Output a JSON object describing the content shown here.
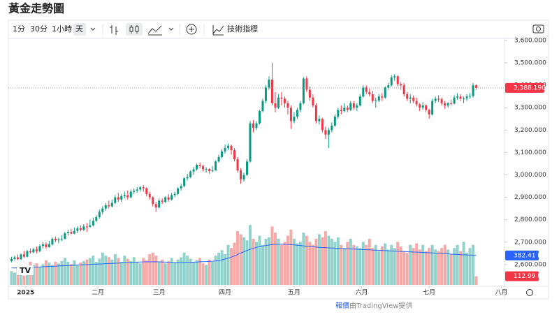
{
  "header": {
    "title": "黃金走勢圖"
  },
  "toolbar": {
    "intervals": [
      "1分",
      "30分",
      "1小時",
      "天"
    ],
    "indicators": "技術指標"
  },
  "footer": {
    "prefix": "報價",
    "text": "由TradingView提供"
  },
  "chart_data": {
    "type": "candlestick",
    "up_color": "#089981",
    "down_color": "#f23645",
    "up_volume_color": "#92d2cc",
    "down_volume_color": "#f7a9a7",
    "volume_ma_color": "#2962ff",
    "xlim": [
      -1,
      157
    ],
    "xticks": [
      {
        "value": 4.5,
        "label": "2025"
      },
      {
        "value": 27.5,
        "label": "二月"
      },
      {
        "value": 47,
        "label": "三月"
      },
      {
        "value": 68,
        "label": "四月"
      },
      {
        "value": 90,
        "label": "五月"
      },
      {
        "value": 111.5,
        "label": "六月"
      },
      {
        "value": 133,
        "label": "七月"
      },
      {
        "value": 156,
        "label": "八月"
      }
    ],
    "ylim": [
      2503,
      3631
    ],
    "yticks": [
      {
        "value": 2600,
        "label": "2,600.000"
      },
      {
        "value": 2700,
        "label": "2,700.000"
      },
      {
        "value": 2800,
        "label": "2,800.000"
      },
      {
        "value": 2900,
        "label": "2,900.000"
      },
      {
        "value": 3000,
        "label": "3,000.000"
      },
      {
        "value": 3100,
        "label": "3,100.000"
      },
      {
        "value": 3200,
        "label": "3,200.000"
      },
      {
        "value": 3300,
        "label": "3,300.000"
      },
      {
        "value": 3400,
        "label": "3,400.000"
      },
      {
        "value": 3500,
        "label": "3,500.000"
      },
      {
        "value": 3600,
        "label": "3,600.000"
      }
    ],
    "grid": false,
    "last_price_label": "3,388.190",
    "volume_last_label": "112.99 K",
    "volume_ma_last_label": "382.41 K",
    "candles": [
      [
        2615,
        2635,
        2610,
        2625
      ],
      [
        2625,
        2640,
        2618,
        2632
      ],
      [
        2632,
        2645,
        2620,
        2624
      ],
      [
        2624,
        2650,
        2620,
        2645
      ],
      [
        2645,
        2660,
        2630,
        2635
      ],
      [
        2635,
        2665,
        2632,
        2660
      ],
      [
        2660,
        2672,
        2648,
        2655
      ],
      [
        2655,
        2675,
        2650,
        2668
      ],
      [
        2668,
        2680,
        2650,
        2660
      ],
      [
        2660,
        2690,
        2655,
        2683
      ],
      [
        2683,
        2700,
        2672,
        2690
      ],
      [
        2690,
        2700,
        2670,
        2678
      ],
      [
        2678,
        2705,
        2675,
        2690
      ],
      [
        2690,
        2722,
        2685,
        2715
      ],
      [
        2715,
        2725,
        2700,
        2708
      ],
      [
        2708,
        2720,
        2695,
        2712
      ],
      [
        2712,
        2730,
        2705,
        2715
      ],
      [
        2715,
        2745,
        2712,
        2740
      ],
      [
        2740,
        2755,
        2730,
        2745
      ],
      [
        2745,
        2760,
        2735,
        2738
      ],
      [
        2738,
        2765,
        2735,
        2750
      ],
      [
        2750,
        2770,
        2740,
        2762
      ],
      [
        2762,
        2775,
        2748,
        2755
      ],
      [
        2755,
        2780,
        2750,
        2770
      ],
      [
        2770,
        2785,
        2745,
        2768
      ],
      [
        2768,
        2800,
        2765,
        2775
      ],
      [
        2775,
        2810,
        2770,
        2795
      ],
      [
        2795,
        2820,
        2790,
        2812
      ],
      [
        2812,
        2845,
        2805,
        2835
      ],
      [
        2835,
        2860,
        2825,
        2850
      ],
      [
        2850,
        2875,
        2840,
        2865
      ],
      [
        2865,
        2885,
        2850,
        2860
      ],
      [
        2860,
        2890,
        2855,
        2875
      ],
      [
        2875,
        2910,
        2870,
        2900
      ],
      [
        2900,
        2920,
        2880,
        2890
      ],
      [
        2890,
        2915,
        2880,
        2905
      ],
      [
        2905,
        2925,
        2895,
        2910
      ],
      [
        2910,
        2930,
        2890,
        2900
      ],
      [
        2900,
        2935,
        2895,
        2925
      ],
      [
        2925,
        2940,
        2915,
        2930
      ],
      [
        2930,
        2945,
        2920,
        2935
      ],
      [
        2935,
        2950,
        2925,
        2945
      ],
      [
        2945,
        2955,
        2925,
        2940
      ],
      [
        2940,
        2945,
        2905,
        2915
      ],
      [
        2915,
        2925,
        2890,
        2900
      ],
      [
        2900,
        2905,
        2860,
        2870
      ],
      [
        2870,
        2880,
        2835,
        2855
      ],
      [
        2855,
        2895,
        2850,
        2885
      ],
      [
        2885,
        2895,
        2870,
        2880
      ],
      [
        2880,
        2905,
        2875,
        2900
      ],
      [
        2900,
        2915,
        2880,
        2890
      ],
      [
        2890,
        2920,
        2885,
        2910
      ],
      [
        2910,
        2925,
        2900,
        2915
      ],
      [
        2915,
        2945,
        2910,
        2940
      ],
      [
        2940,
        2960,
        2930,
        2950
      ],
      [
        2950,
        2990,
        2945,
        2985
      ],
      [
        2985,
        3005,
        2975,
        2990
      ],
      [
        2990,
        3020,
        2985,
        3015
      ],
      [
        3015,
        3035,
        3000,
        3025
      ],
      [
        3025,
        3050,
        3020,
        3045
      ],
      [
        3045,
        3055,
        3030,
        3040
      ],
      [
        3040,
        3045,
        3015,
        3025
      ],
      [
        3025,
        3035,
        3010,
        3026
      ],
      [
        3026,
        3030,
        3005,
        3018
      ],
      [
        3018,
        3040,
        3012,
        3020
      ],
      [
        3020,
        3065,
        3018,
        3060
      ],
      [
        3060,
        3090,
        3055,
        3080
      ],
      [
        3080,
        3115,
        3075,
        3105
      ],
      [
        3105,
        3135,
        3095,
        3120
      ],
      [
        3120,
        3140,
        3110,
        3130
      ],
      [
        3130,
        3135,
        3090,
        3110
      ],
      [
        3110,
        3120,
        3060,
        3070
      ],
      [
        3070,
        3080,
        3010,
        3020
      ],
      [
        3020,
        3030,
        2960,
        2980
      ],
      [
        2980,
        3010,
        2970,
        3000
      ],
      [
        3000,
        3070,
        2995,
        3060
      ],
      [
        3060,
        3240,
        3055,
        3230
      ],
      [
        3230,
        3245,
        3190,
        3210
      ],
      [
        3210,
        3240,
        3200,
        3230
      ],
      [
        3230,
        3290,
        3225,
        3285
      ],
      [
        3285,
        3340,
        3280,
        3330
      ],
      [
        3330,
        3400,
        3320,
        3390
      ],
      [
        3390,
        3440,
        3380,
        3425
      ],
      [
        3425,
        3500,
        3310,
        3320
      ],
      [
        3320,
        3370,
        3280,
        3300
      ],
      [
        3300,
        3360,
        3295,
        3345
      ],
      [
        3345,
        3370,
        3310,
        3340
      ],
      [
        3340,
        3350,
        3300,
        3320
      ],
      [
        3320,
        3330,
        3270,
        3300
      ],
      [
        3300,
        3310,
        3205,
        3240
      ],
      [
        3240,
        3280,
        3230,
        3260
      ],
      [
        3260,
        3300,
        3250,
        3290
      ],
      [
        3290,
        3330,
        3280,
        3320
      ],
      [
        3320,
        3435,
        3315,
        3430
      ],
      [
        3430,
        3440,
        3370,
        3380
      ],
      [
        3380,
        3395,
        3330,
        3345
      ],
      [
        3345,
        3360,
        3300,
        3310
      ],
      [
        3310,
        3320,
        3230,
        3240
      ],
      [
        3240,
        3265,
        3225,
        3250
      ],
      [
        3250,
        3255,
        3190,
        3200
      ],
      [
        3200,
        3215,
        3160,
        3180
      ],
      [
        3180,
        3210,
        3120,
        3200
      ],
      [
        3200,
        3235,
        3190,
        3220
      ],
      [
        3220,
        3270,
        3215,
        3260
      ],
      [
        3260,
        3300,
        3250,
        3290
      ],
      [
        3290,
        3310,
        3270,
        3285
      ],
      [
        3285,
        3320,
        3280,
        3300
      ],
      [
        3300,
        3310,
        3280,
        3290
      ],
      [
        3290,
        3330,
        3285,
        3320
      ],
      [
        3320,
        3330,
        3290,
        3300
      ],
      [
        3300,
        3320,
        3285,
        3310
      ],
      [
        3310,
        3360,
        3305,
        3350
      ],
      [
        3350,
        3400,
        3345,
        3390
      ],
      [
        3390,
        3400,
        3360,
        3370
      ],
      [
        3370,
        3385,
        3350,
        3360
      ],
      [
        3360,
        3375,
        3320,
        3330
      ],
      [
        3330,
        3345,
        3300,
        3332
      ],
      [
        3332,
        3360,
        3325,
        3350
      ],
      [
        3350,
        3365,
        3330,
        3345
      ],
      [
        3345,
        3395,
        3340,
        3390
      ],
      [
        3390,
        3410,
        3380,
        3400
      ],
      [
        3400,
        3445,
        3395,
        3435
      ],
      [
        3435,
        3450,
        3420,
        3440
      ],
      [
        3440,
        3445,
        3395,
        3405
      ],
      [
        3405,
        3415,
        3380,
        3400
      ],
      [
        3400,
        3410,
        3350,
        3360
      ],
      [
        3360,
        3370,
        3330,
        3340
      ],
      [
        3340,
        3360,
        3320,
        3345
      ],
      [
        3345,
        3355,
        3320,
        3330
      ],
      [
        3330,
        3345,
        3305,
        3315
      ],
      [
        3315,
        3320,
        3285,
        3300
      ],
      [
        3300,
        3325,
        3290,
        3310
      ],
      [
        3310,
        3315,
        3280,
        3290
      ],
      [
        3290,
        3295,
        3250,
        3270
      ],
      [
        3270,
        3340,
        3265,
        3330
      ],
      [
        3330,
        3350,
        3320,
        3340
      ],
      [
        3340,
        3355,
        3325,
        3338
      ],
      [
        3338,
        3345,
        3310,
        3320
      ],
      [
        3320,
        3330,
        3295,
        3310
      ],
      [
        3310,
        3325,
        3300,
        3320
      ],
      [
        3320,
        3335,
        3310,
        3318
      ],
      [
        3318,
        3355,
        3315,
        3345
      ],
      [
        3345,
        3365,
        3335,
        3350
      ],
      [
        3350,
        3360,
        3330,
        3340
      ],
      [
        3340,
        3350,
        3320,
        3342
      ],
      [
        3342,
        3360,
        3330,
        3350
      ],
      [
        3350,
        3365,
        3340,
        3352
      ],
      [
        3352,
        3410,
        3345,
        3400
      ],
      [
        3400,
        3405,
        3380,
        3388.19
      ]
    ],
    "volume": [
      180,
      160,
      240,
      200,
      120,
      250,
      300,
      260,
      280,
      230,
      270,
      320,
      290,
      260,
      300,
      280,
      310,
      350,
      300,
      270,
      320,
      260,
      290,
      310,
      330,
      350,
      380,
      300,
      340,
      420,
      380,
      360,
      330,
      400,
      350,
      300,
      380,
      340,
      310,
      360,
      300,
      280,
      350,
      320,
      400,
      420,
      380,
      300,
      330,
      280,
      310,
      350,
      290,
      330,
      360,
      420,
      380,
      340,
      300,
      320,
      350,
      280,
      260,
      330,
      300,
      380,
      420,
      450,
      400,
      520,
      480,
      550,
      700,
      660,
      620,
      580,
      780,
      600,
      560,
      640,
      520,
      600,
      620,
      760,
      680,
      600,
      520,
      560,
      640,
      720,
      600,
      540,
      560,
      680,
      640,
      560,
      520,
      600,
      660,
      620,
      700,
      640,
      600,
      560,
      620,
      520,
      480,
      560,
      600,
      520,
      500,
      480,
      560,
      520,
      600,
      480,
      520,
      440,
      500,
      540,
      460,
      520,
      480,
      560,
      500,
      440,
      420,
      520,
      480,
      540,
      460,
      520,
      440,
      480,
      520,
      460,
      440,
      480,
      520,
      460,
      400,
      480,
      520,
      440,
      560,
      420,
      480,
      520,
      112.99
    ],
    "volume_ma": [
      220,
      220,
      222,
      224,
      224,
      226,
      228,
      230,
      232,
      234,
      236,
      238,
      240,
      242,
      244,
      246,
      248,
      250,
      252,
      254,
      256,
      258,
      260,
      262,
      264,
      266,
      268,
      270,
      272,
      274,
      276,
      278,
      280,
      282,
      284,
      286,
      288,
      290,
      292,
      294,
      296,
      298,
      300,
      300,
      300,
      300,
      300,
      300,
      298,
      296,
      294,
      292,
      290,
      290,
      290,
      290,
      292,
      294,
      296,
      298,
      300,
      302,
      304,
      306,
      308,
      312,
      318,
      326,
      336,
      348,
      362,
      378,
      396,
      414,
      432,
      448,
      462,
      476,
      488,
      498,
      506,
      512,
      518,
      524,
      528,
      530,
      530,
      528,
      526,
      524,
      520,
      516,
      512,
      508,
      504,
      500,
      496,
      492,
      488,
      486,
      484,
      482,
      480,
      478,
      476,
      474,
      472,
      470,
      468,
      466,
      464,
      462,
      460,
      458,
      456,
      454,
      452,
      450,
      448,
      446,
      444,
      442,
      440,
      438,
      436,
      434,
      432,
      430,
      428,
      426,
      424,
      422,
      420,
      418,
      416,
      414,
      412,
      410,
      408,
      404,
      400,
      398,
      396,
      394,
      392,
      390,
      388,
      385,
      382.41
    ]
  }
}
